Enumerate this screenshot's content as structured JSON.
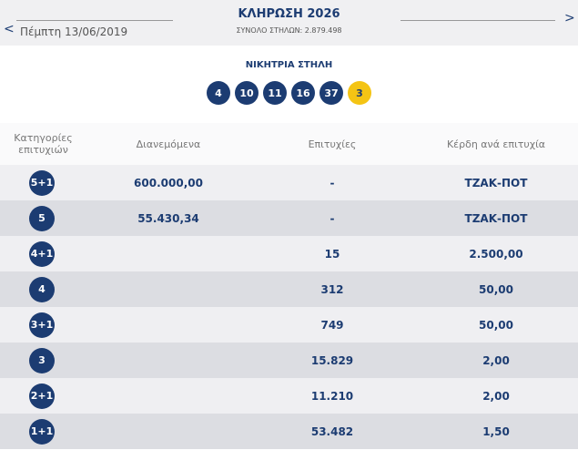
{
  "header": {
    "date": "Πέμπτη 13/06/2019",
    "title": "ΚΛΗΡΩΣΗ 2026",
    "subtitle": "ΣΥΝΟΛΟ ΣΤΗΛΩΝ: 2.879.498"
  },
  "winning": {
    "label": "ΝΙΚΗΤΡΙΑ ΣΤΗΛΗ",
    "numbers": [
      "4",
      "10",
      "11",
      "16",
      "37"
    ],
    "bonus": "3"
  },
  "table": {
    "columns": [
      "Κατηγορίες επιτυχιών",
      "Διανεμόμενα",
      "Επιτυχίες",
      "Κέρδη ανά επιτυχία"
    ],
    "rows": [
      {
        "category": "5+1",
        "distributed": "600.000,00",
        "winners": "-",
        "prize": "ΤΖΑΚ-ΠΟΤ"
      },
      {
        "category": "5",
        "distributed": "55.430,34",
        "winners": "-",
        "prize": "ΤΖΑΚ-ΠΟΤ"
      },
      {
        "category": "4+1",
        "winners": "15",
        "prize": "2.500,00"
      },
      {
        "category": "4",
        "winners": "312",
        "prize": "50,00"
      },
      {
        "category": "3+1",
        "winners": "749",
        "prize": "50,00"
      },
      {
        "category": "3",
        "winners": "15.829",
        "prize": "2,00"
      },
      {
        "category": "2+1",
        "winners": "11.210",
        "prize": "2,00"
      },
      {
        "category": "1+1",
        "winners": "53.482",
        "prize": "1,50"
      }
    ]
  }
}
